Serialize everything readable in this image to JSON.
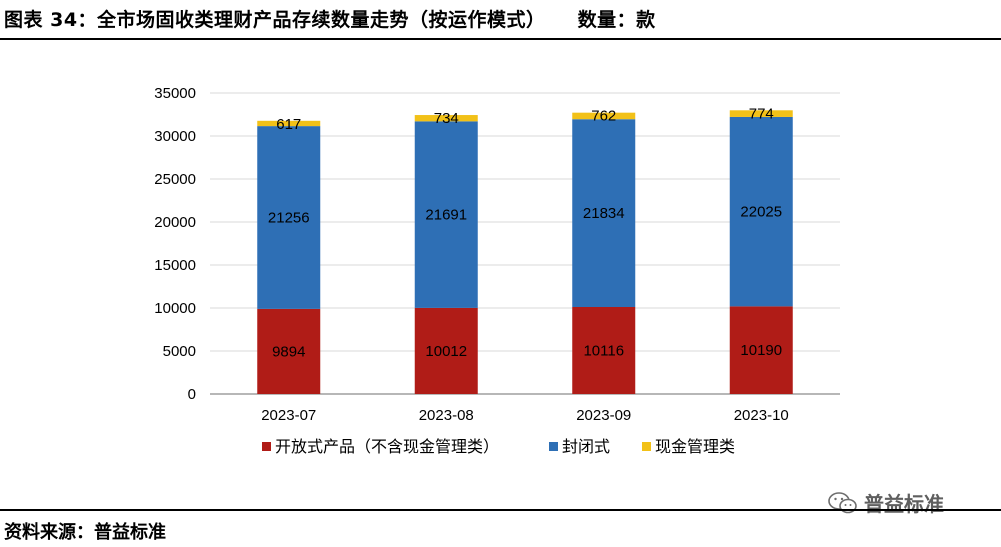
{
  "header": {
    "title": "图表 34：全市场固收类理财产品存续数量走势（按运作模式）",
    "unit": "数量：款"
  },
  "footer": {
    "source": "资料来源：普益标准",
    "watermark": "普益标准"
  },
  "colors": {
    "open": "#b01c17",
    "closed": "#2e6fb5",
    "cash": "#f2c118",
    "grid": "#d9d9d9",
    "axis": "#000000"
  },
  "chart_data": {
    "type": "bar",
    "stacked": true,
    "categories": [
      "2023-07",
      "2023-08",
      "2023-09",
      "2023-10"
    ],
    "series": [
      {
        "name": "开放式产品（不含现金管理类）",
        "key": "open",
        "values": [
          9894,
          10012,
          10116,
          10190
        ]
      },
      {
        "name": "封闭式",
        "key": "closed",
        "values": [
          21256,
          21691,
          21834,
          22025
        ]
      },
      {
        "name": "现金管理类",
        "key": "cash",
        "values": [
          617,
          734,
          762,
          774
        ]
      }
    ],
    "ylim": [
      0,
      35000
    ],
    "yticks": [
      0,
      5000,
      10000,
      15000,
      20000,
      25000,
      30000,
      35000
    ],
    "grid": true,
    "legend": "bottom"
  }
}
